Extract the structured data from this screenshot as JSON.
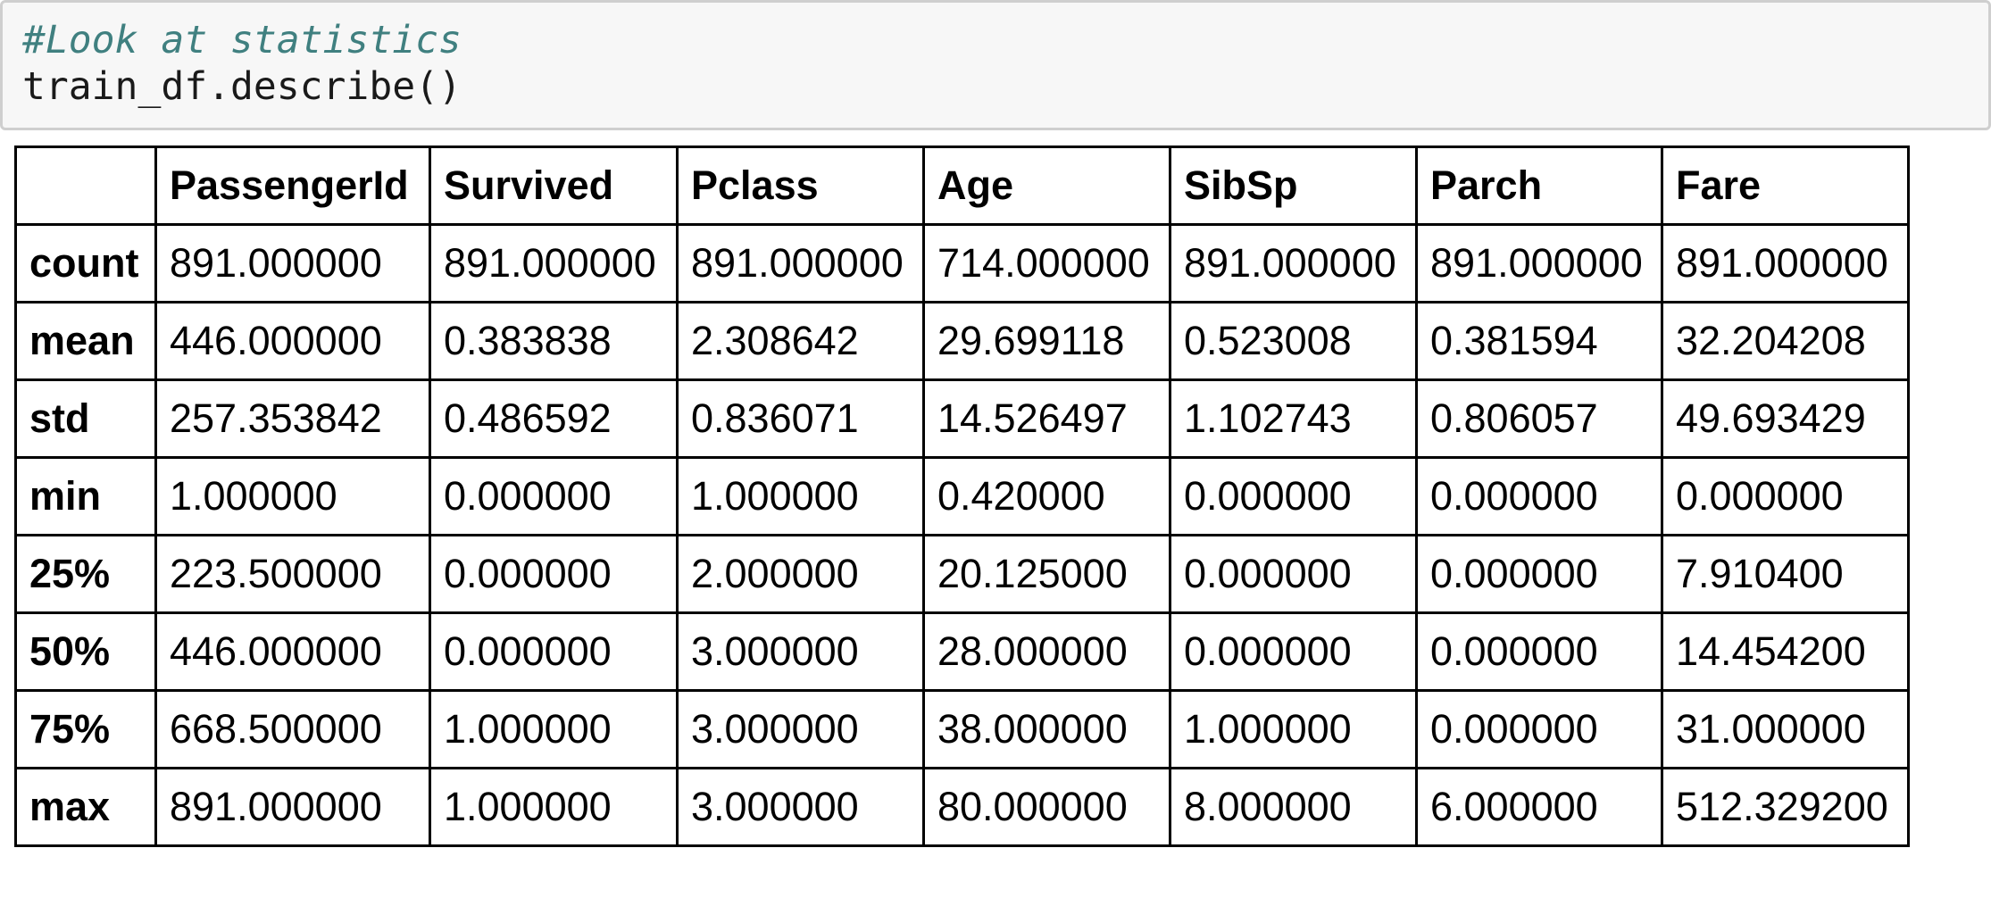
{
  "code_cell": {
    "comment": "#Look at statistics",
    "code": "train_df.describe()"
  },
  "table": {
    "columns": [
      "",
      "PassengerId",
      "Survived",
      "Pclass",
      "Age",
      "SibSp",
      "Parch",
      "Fare"
    ],
    "rows": [
      {
        "label": "count",
        "values": [
          "891.000000",
          "891.000000",
          "891.000000",
          "714.000000",
          "891.000000",
          "891.000000",
          "891.000000"
        ]
      },
      {
        "label": "mean",
        "values": [
          "446.000000",
          "0.383838",
          "2.308642",
          "29.699118",
          "0.523008",
          "0.381594",
          "32.204208"
        ]
      },
      {
        "label": "std",
        "values": [
          "257.353842",
          "0.486592",
          "0.836071",
          "14.526497",
          "1.102743",
          "0.806057",
          "49.693429"
        ]
      },
      {
        "label": "min",
        "values": [
          "1.000000",
          "0.000000",
          "1.000000",
          "0.420000",
          "0.000000",
          "0.000000",
          "0.000000"
        ]
      },
      {
        "label": "25%",
        "values": [
          "223.500000",
          "0.000000",
          "2.000000",
          "20.125000",
          "0.000000",
          "0.000000",
          "7.910400"
        ]
      },
      {
        "label": "50%",
        "values": [
          "446.000000",
          "0.000000",
          "3.000000",
          "28.000000",
          "0.000000",
          "0.000000",
          "14.454200"
        ]
      },
      {
        "label": "75%",
        "values": [
          "668.500000",
          "1.000000",
          "3.000000",
          "38.000000",
          "1.000000",
          "0.000000",
          "31.000000"
        ]
      },
      {
        "label": "max",
        "values": [
          "891.000000",
          "1.000000",
          "3.000000",
          "80.000000",
          "8.000000",
          "6.000000",
          "512.329200"
        ]
      }
    ]
  }
}
